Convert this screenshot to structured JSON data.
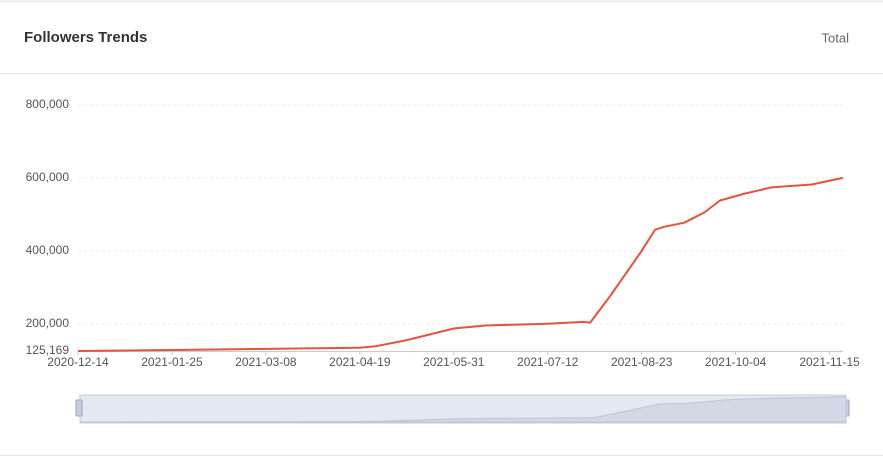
{
  "header": {
    "title": "Followers Trends",
    "mode": "Total"
  },
  "chart_data": {
    "type": "line",
    "x": [
      "2020-12-14",
      "2021-01-25",
      "2021-03-08",
      "2021-04-19",
      "2021-04-26",
      "2021-05-10",
      "2021-05-31",
      "2021-06-14",
      "2021-07-12",
      "2021-07-28",
      "2021-07-31",
      "2021-08-04",
      "2021-08-09",
      "2021-08-23",
      "2021-08-29",
      "2021-09-02",
      "2021-09-11",
      "2021-09-20",
      "2021-09-27",
      "2021-10-08",
      "2021-10-20",
      "2021-11-07",
      "2021-11-21"
    ],
    "series": [
      {
        "name": "Followers",
        "color": "#e5533f",
        "values": [
          125169,
          128000,
          131000,
          134000,
          138000,
          155000,
          187000,
          195000,
          200000,
          205000,
          203000,
          236000,
          277000,
          400000,
          458000,
          466000,
          477000,
          505000,
          538000,
          557000,
          574000,
          582000,
          600000
        ]
      }
    ],
    "xlim": [
      "2020-12-14",
      "2021-11-21"
    ],
    "xticks": [
      "2020-12-14",
      "2021-01-25",
      "2021-03-08",
      "2021-04-19",
      "2021-05-31",
      "2021-07-12",
      "2021-08-23",
      "2021-10-04",
      "2021-11-15"
    ],
    "ylim": [
      125169,
      800000
    ],
    "yticks": [
      {
        "value": 125169,
        "label": "125,169"
      },
      {
        "value": 200000,
        "label": "200,000"
      },
      {
        "value": 400000,
        "label": "400,000"
      },
      {
        "value": 600000,
        "label": "600,000"
      },
      {
        "value": 800000,
        "label": "800,000"
      }
    ],
    "grid": true
  }
}
